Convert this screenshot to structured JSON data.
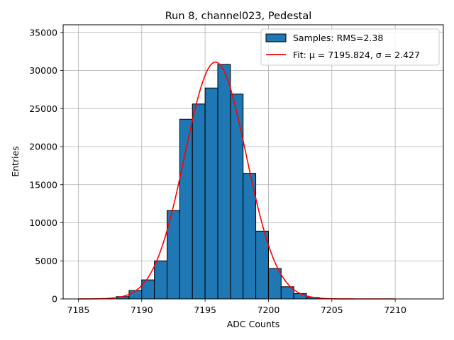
{
  "chart_data": {
    "type": "bar",
    "title": "Run 8, channel023, Pedestal",
    "xlabel": "ADC Counts",
    "ylabel": "Entries",
    "xlim": [
      7183.8,
      7213.8
    ],
    "ylim": [
      0,
      36000
    ],
    "xticks": [
      7185,
      7190,
      7195,
      7200,
      7205,
      7210
    ],
    "yticks": [
      0,
      5000,
      10000,
      15000,
      20000,
      25000,
      30000,
      35000
    ],
    "grid": true,
    "legend_position": "upper right",
    "bin_width": 1,
    "bins": [
      {
        "x": 7188.5,
        "count": 300
      },
      {
        "x": 7189.5,
        "count": 1100
      },
      {
        "x": 7190.5,
        "count": 2500
      },
      {
        "x": 7191.5,
        "count": 5000
      },
      {
        "x": 7192.5,
        "count": 11600
      },
      {
        "x": 7193.5,
        "count": 23600
      },
      {
        "x": 7194.5,
        "count": 25600
      },
      {
        "x": 7195.5,
        "count": 27700
      },
      {
        "x": 7196.5,
        "count": 30800
      },
      {
        "x": 7197.5,
        "count": 26900
      },
      {
        "x": 7198.5,
        "count": 16500
      },
      {
        "x": 7199.5,
        "count": 8900
      },
      {
        "x": 7200.5,
        "count": 4000
      },
      {
        "x": 7201.5,
        "count": 1600
      },
      {
        "x": 7202.5,
        "count": 700
      },
      {
        "x": 7203.5,
        "count": 200
      }
    ],
    "fit": {
      "mu": 7195.824,
      "sigma": 2.427,
      "amplitude": 31100,
      "x_range": [
        7185,
        7210
      ]
    },
    "series": [
      {
        "name": "Samples: RMS=2.38",
        "kind": "histogram",
        "color": "#1f77b4"
      },
      {
        "name": "Fit: μ = 7195.824, σ = 2.427",
        "kind": "line",
        "color": "#ff0000"
      }
    ]
  }
}
